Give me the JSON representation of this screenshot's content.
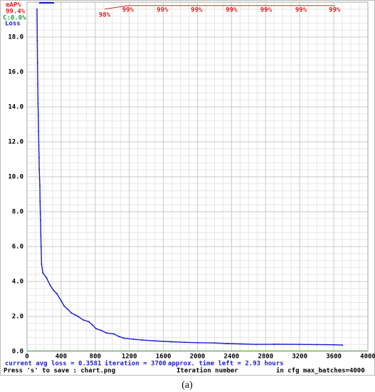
{
  "chart_data": {
    "type": "line",
    "x": [
      117,
      120,
      123,
      126,
      129,
      132,
      135,
      138,
      141,
      144,
      147,
      150,
      153,
      156,
      159,
      162,
      165,
      170,
      185,
      230,
      270,
      310,
      350,
      400,
      435,
      480,
      520,
      560,
      600,
      660,
      725,
      770,
      810,
      870,
      935,
      1020,
      1080,
      1140,
      1250,
      1350,
      1500,
      1690,
      1850,
      2000,
      2200,
      2355,
      2500,
      2690,
      2900,
      3190,
      3400,
      3600,
      3700
    ],
    "series": [
      {
        "name": "Loss",
        "color": "#1a1ad0",
        "values": [
          19.6,
          17.8,
          16.5,
          15.3,
          14.2,
          13.5,
          12.6,
          11.8,
          11.1,
          10.4,
          9.9,
          9.5,
          8.6,
          7.9,
          7.5,
          6.6,
          6.0,
          5.0,
          4.5,
          4.2,
          3.8,
          3.5,
          3.3,
          2.9,
          2.6,
          2.4,
          2.2,
          2.1,
          2.0,
          1.8,
          1.7,
          1.5,
          1.3,
          1.2,
          1.05,
          1.0,
          0.85,
          0.75,
          0.7,
          0.65,
          0.6,
          0.55,
          0.52,
          0.5,
          0.48,
          0.45,
          0.43,
          0.4,
          0.41,
          0.4,
          0.39,
          0.38,
          0.36
        ]
      },
      {
        "name": "mAP%",
        "color": "#e02020",
        "axis": "y2",
        "x": [
          910,
          1185,
          1590,
          1990,
          2400,
          2805,
          3215,
          3610
        ],
        "values": [
          98,
          99,
          99,
          99,
          99,
          99,
          99,
          99
        ],
        "value_labels": [
          "98%",
          "99%",
          "99%",
          "99%",
          "99%",
          "99%",
          "99%",
          "99%"
        ]
      }
    ],
    "annotations": [
      "99.4%",
      "C:0.0%"
    ],
    "status_line": [
      "current avg loss = 0.3581",
      "iteration = 3700",
      "approx. time left = 2.93 hours"
    ],
    "footer_line": [
      "Press 's' to save : chart.png",
      "Iteration number",
      "in cfg max_batches=4000"
    ],
    "caption": "(a)",
    "xlim": [
      0,
      4000
    ],
    "xticks": [
      0,
      400,
      800,
      1200,
      1600,
      2000,
      2400,
      2800,
      3200,
      3600,
      4000
    ],
    "ylim": [
      0,
      20
    ],
    "yticks": [
      {
        "value": 0,
        "label": "0.0"
      },
      {
        "value": 2,
        "label": "2.0"
      },
      {
        "value": 4,
        "label": "4.0"
      },
      {
        "value": 6,
        "label": "6.0"
      },
      {
        "value": 8,
        "label": "8.0"
      },
      {
        "value": 10,
        "label": "10.0"
      },
      {
        "value": 12,
        "label": "12.0"
      },
      {
        "value": 14,
        "label": "14.0"
      },
      {
        "value": 16,
        "label": "16.0"
      },
      {
        "value": 18,
        "label": "18.0"
      }
    ],
    "y2lim": [
      0,
      100
    ],
    "grid": true
  }
}
